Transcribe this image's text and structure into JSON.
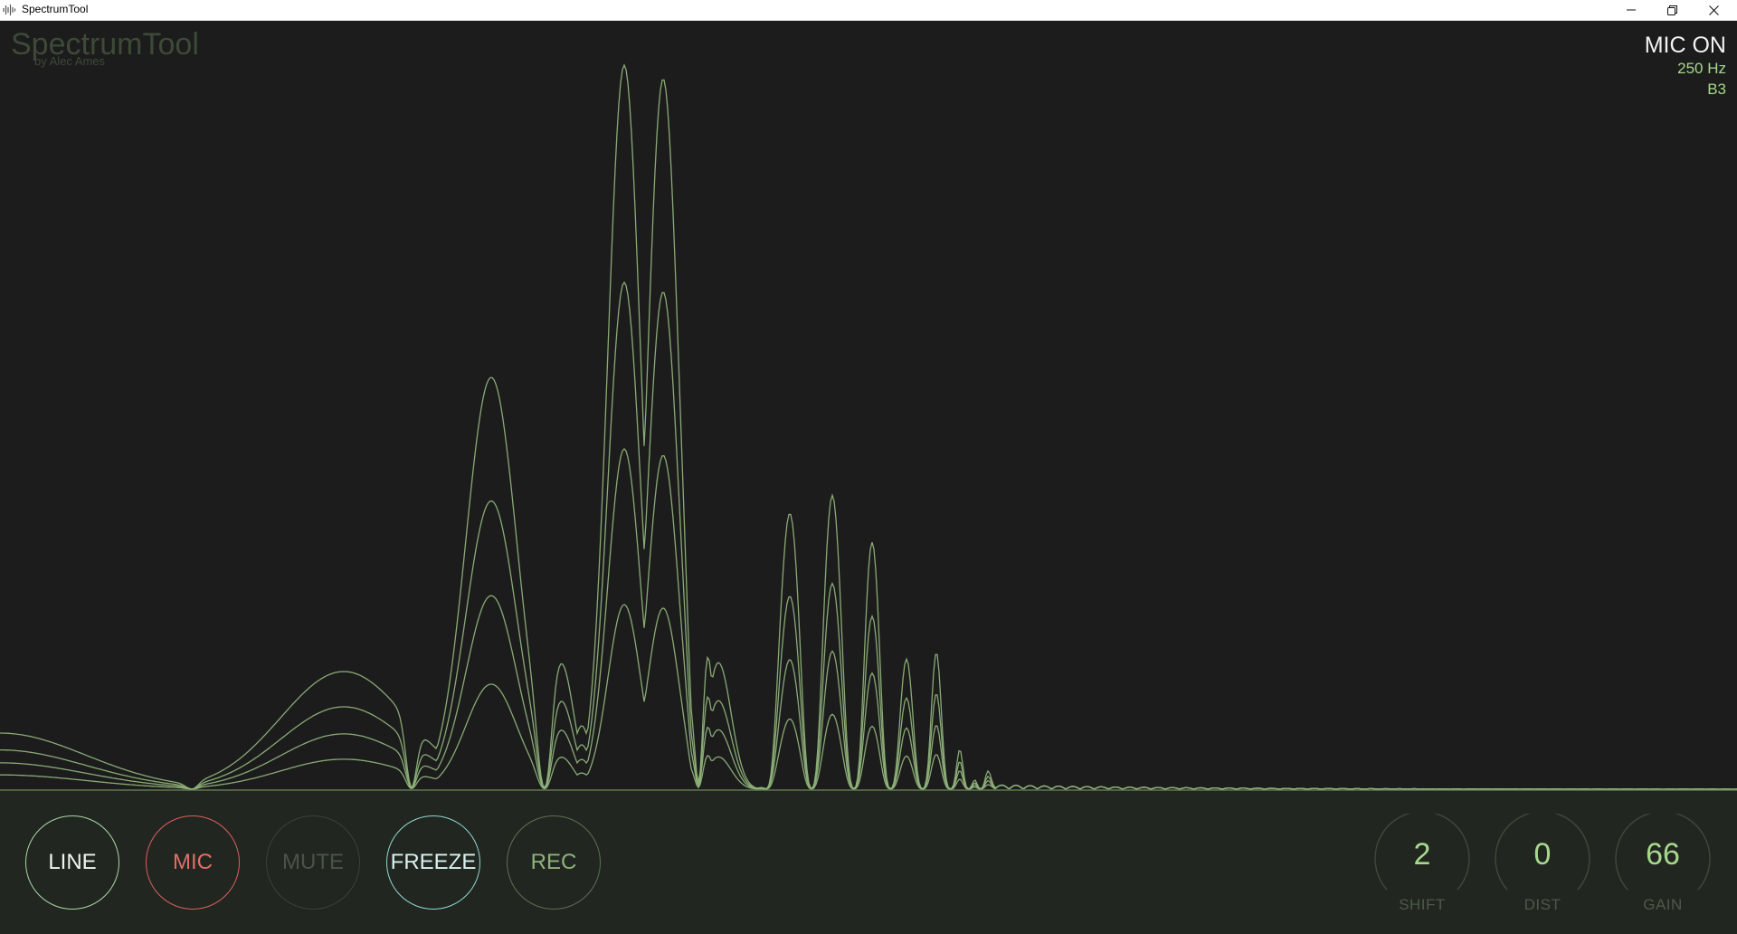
{
  "window": {
    "title": "SpectrumTool",
    "controls": {
      "minimize": "minimize-icon",
      "restore": "restore-icon",
      "close": "close-icon"
    }
  },
  "brand": {
    "name": "SpectrumTool",
    "author": "by Alec Ames"
  },
  "readout": {
    "status": "MIC ON",
    "frequency": "250 Hz",
    "note": "B3"
  },
  "buttons": [
    {
      "id": "line",
      "label": "LINE",
      "color": "#a9d8a6"
    },
    {
      "id": "mic",
      "label": "MIC",
      "color": "#d9605a"
    },
    {
      "id": "mute",
      "label": "MUTE",
      "color": "#3a4137"
    },
    {
      "id": "freeze",
      "label": "FREEZE",
      "color": "#8fd8d0"
    },
    {
      "id": "rec",
      "label": "REC",
      "color": "#5c7050"
    }
  ],
  "knobs": [
    {
      "id": "shift",
      "label": "SHIFT",
      "value": "2"
    },
    {
      "id": "dist",
      "label": "DIST",
      "value": "0"
    },
    {
      "id": "gain",
      "label": "GAIN",
      "value": "66"
    }
  ],
  "colors": {
    "background": "#1c1c1c",
    "panel": "#222621",
    "spectrum_line": "#8fb27a",
    "accent": "#a7d88e"
  }
}
